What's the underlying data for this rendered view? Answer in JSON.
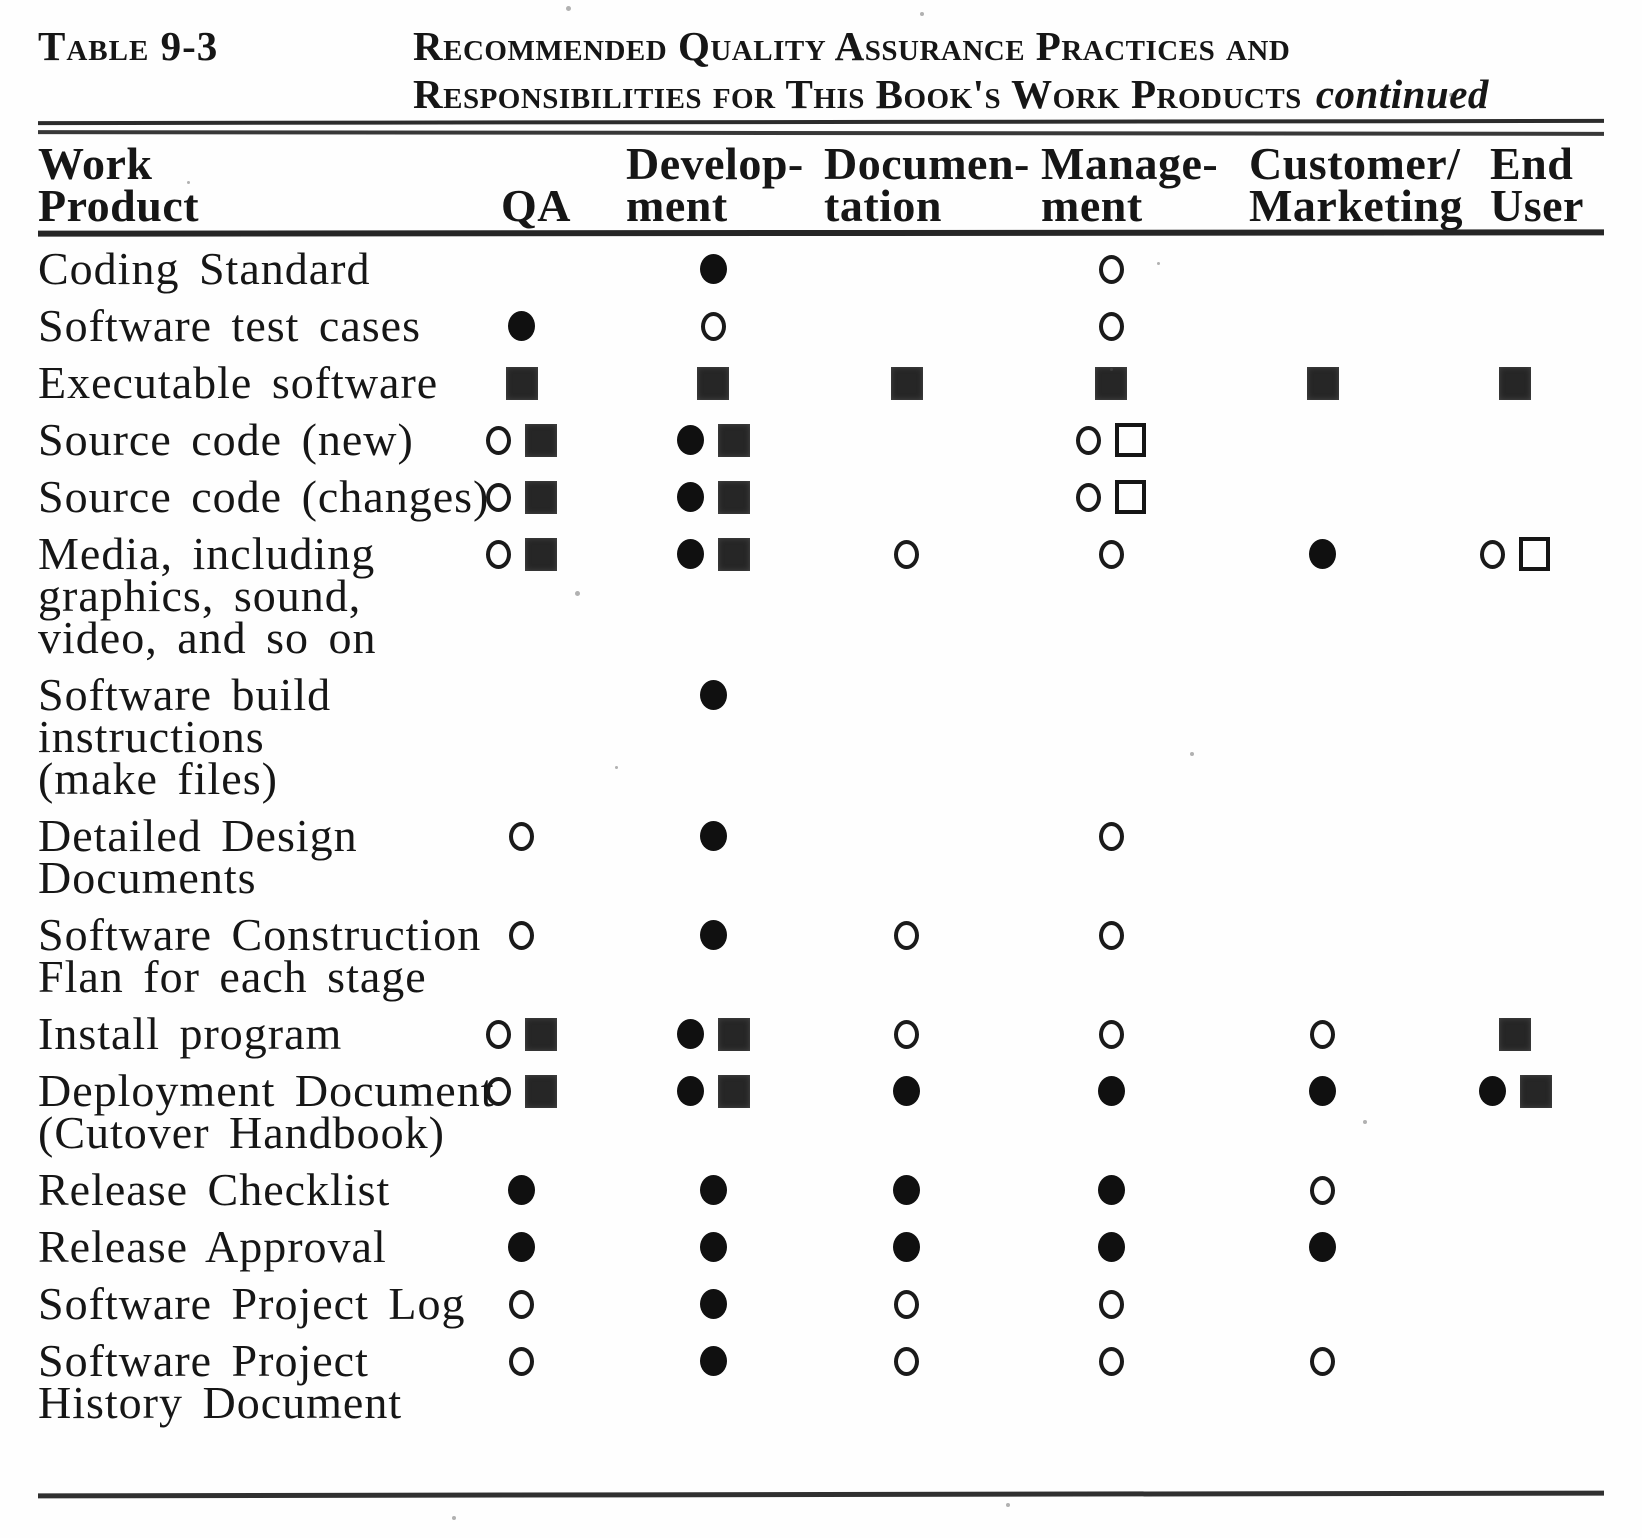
{
  "document": {
    "label": "Table 9-3",
    "title_line1": "Recommended Quality Assurance Practices and",
    "title_line2": "Responsibilities for This Book's Work Products",
    "continued": "continued"
  },
  "symbol_glyphs": {
    "filled-circle": "●",
    "open-circle": "○",
    "filled-square": "■",
    "open-square": "□"
  },
  "colors": {
    "page_background": "#fefefe",
    "ink": "#161616"
  },
  "table": {
    "columns": [
      {
        "key": "product",
        "line1": "Work",
        "line2": "Product"
      },
      {
        "key": "qa",
        "line1": "",
        "line2": "QA"
      },
      {
        "key": "dev",
        "line1": "Develop-",
        "line2": "ment"
      },
      {
        "key": "doc",
        "line1": "Documen-",
        "line2": "tation"
      },
      {
        "key": "mgmt",
        "line1": "Manage-",
        "line2": "ment"
      },
      {
        "key": "cm",
        "line1": "Customer/",
        "line2": "Marketing"
      },
      {
        "key": "eu",
        "line1": "End",
        "line2": "User"
      }
    ],
    "rows": [
      {
        "product_lines": [
          "Coding Standard"
        ],
        "cells": [
          [],
          [
            "filled-circle"
          ],
          [],
          [
            "open-circle"
          ],
          [],
          []
        ]
      },
      {
        "product_lines": [
          "Software test cases"
        ],
        "cells": [
          [
            "filled-circle"
          ],
          [
            "open-circle"
          ],
          [],
          [
            "open-circle"
          ],
          [],
          []
        ]
      },
      {
        "product_lines": [
          "Executable software"
        ],
        "cells": [
          [
            "filled-square"
          ],
          [
            "filled-square"
          ],
          [
            "filled-square"
          ],
          [
            "filled-square"
          ],
          [
            "filled-square"
          ],
          [
            "filled-square"
          ]
        ]
      },
      {
        "product_lines": [
          "Source code (new)"
        ],
        "cells": [
          [
            "open-circle",
            "filled-square"
          ],
          [
            "filled-circle",
            "filled-square"
          ],
          [],
          [
            "open-circle",
            "open-square"
          ],
          [],
          []
        ]
      },
      {
        "product_lines": [
          "Source code (changes)"
        ],
        "cells": [
          [
            "open-circle",
            "filled-square"
          ],
          [
            "filled-circle",
            "filled-square"
          ],
          [],
          [
            "open-circle",
            "open-square"
          ],
          [],
          []
        ]
      },
      {
        "product_lines": [
          "Media, including",
          "graphics, sound,",
          "video, and so on"
        ],
        "cells": [
          [
            "open-circle",
            "filled-square"
          ],
          [
            "filled-circle",
            "filled-square"
          ],
          [
            "open-circle"
          ],
          [
            "open-circle"
          ],
          [
            "filled-circle"
          ],
          [
            "open-circle",
            "open-square"
          ]
        ]
      },
      {
        "product_lines": [
          "Software build",
          "instructions",
          "(make files)"
        ],
        "cells": [
          [],
          [
            "filled-circle"
          ],
          [],
          [],
          [],
          []
        ]
      },
      {
        "product_lines": [
          "Detailed Design",
          "Documents"
        ],
        "cells": [
          [
            "open-circle"
          ],
          [
            "filled-circle"
          ],
          [],
          [
            "open-circle"
          ],
          [],
          []
        ]
      },
      {
        "product_lines": [
          "Software Construction",
          "Flan for each stage"
        ],
        "cells": [
          [
            "open-circle"
          ],
          [
            "filled-circle"
          ],
          [
            "open-circle"
          ],
          [
            "open-circle"
          ],
          [],
          []
        ]
      },
      {
        "product_lines": [
          "Install program"
        ],
        "cells": [
          [
            "open-circle",
            "filled-square"
          ],
          [
            "filled-circle",
            "filled-square"
          ],
          [
            "open-circle"
          ],
          [
            "open-circle"
          ],
          [
            "open-circle"
          ],
          [
            "filled-square"
          ]
        ]
      },
      {
        "product_lines": [
          "Deployment Document",
          "(Cutover Handbook)"
        ],
        "cells": [
          [
            "open-circle",
            "filled-square"
          ],
          [
            "filled-circle",
            "filled-square"
          ],
          [
            "filled-circle"
          ],
          [
            "filled-circle"
          ],
          [
            "filled-circle"
          ],
          [
            "filled-circle",
            "filled-square"
          ]
        ]
      },
      {
        "product_lines": [
          "Release Checklist"
        ],
        "cells": [
          [
            "filled-circle"
          ],
          [
            "filled-circle"
          ],
          [
            "filled-circle"
          ],
          [
            "filled-circle"
          ],
          [
            "open-circle"
          ],
          []
        ]
      },
      {
        "product_lines": [
          "Release Approval"
        ],
        "cells": [
          [
            "filled-circle"
          ],
          [
            "filled-circle"
          ],
          [
            "filled-circle"
          ],
          [
            "filled-circle"
          ],
          [
            "filled-circle"
          ],
          []
        ]
      },
      {
        "product_lines": [
          "Software Project Log"
        ],
        "cells": [
          [
            "open-circle"
          ],
          [
            "filled-circle"
          ],
          [
            "open-circle"
          ],
          [
            "open-circle"
          ],
          [],
          []
        ]
      },
      {
        "product_lines": [
          "Software Project",
          "History Document"
        ],
        "cells": [
          [
            "open-circle"
          ],
          [
            "filled-circle"
          ],
          [
            "open-circle"
          ],
          [
            "open-circle"
          ],
          [
            "open-circle"
          ],
          []
        ]
      }
    ]
  }
}
